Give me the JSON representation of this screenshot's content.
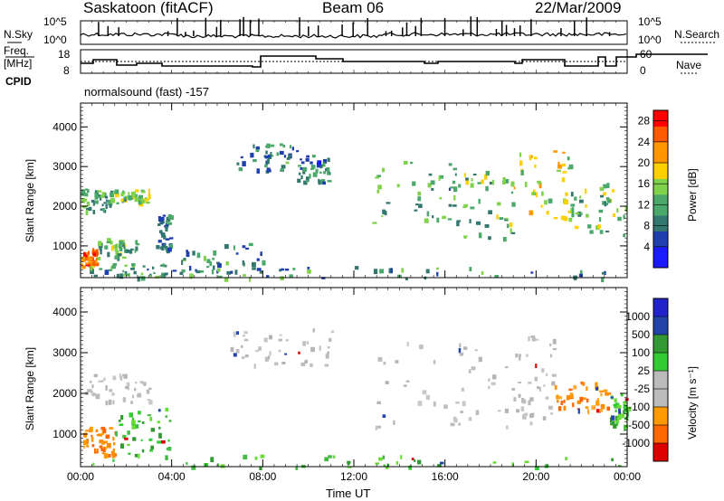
{
  "header": {
    "station": "Saskatoon (fitACF)",
    "beam": "Beam 06",
    "date": "22/Mar/2009"
  },
  "left_labels": {
    "nsky": "N.Sky",
    "freq_line1": "Freq.",
    "freq_line2": "[MHz]",
    "cpid": "CPID"
  },
  "right_labels": {
    "nsearch": "N.Search",
    "nave": "Nave"
  },
  "cpid_value": "normalsound (fast) -157",
  "nsky_ticks": [
    "10^5",
    "10^0"
  ],
  "nsearch_ticks": [
    "10^5",
    "10^0"
  ],
  "freq_ticks": [
    "18",
    "8"
  ],
  "nave_ticks": [
    "60",
    "0"
  ],
  "colors": {
    "velocity_scale": [
      "#dd0000",
      "#ff6600",
      "#ff9900",
      "#bbbbbb",
      "#bbbbbb",
      "#33cc33",
      "#339933",
      "#2244aa",
      "#2222cc"
    ],
    "power_scale": [
      "#1a1aff",
      "#1f3fae",
      "#33776f",
      "#4aa86a",
      "#7fd24a",
      "#ffd000",
      "#ff9500",
      "#ff5a00",
      "#ff0000"
    ]
  },
  "chart_data": [
    {
      "type": "heatmap",
      "name": "power",
      "ylabel": "Slant Range [km]",
      "xlabel": "",
      "x_ticks": [
        "00:00",
        "04:00",
        "08:00",
        "12:00",
        "16:00",
        "20:00",
        "00:00"
      ],
      "y_ticks": [
        1000,
        2000,
        3000,
        4000
      ],
      "ylim": [
        200,
        4600
      ],
      "colorbar_label": "Power [dB]",
      "colorbar_ticks": [
        4,
        8,
        12,
        16,
        20,
        24,
        28
      ],
      "clim": [
        0,
        30
      ],
      "regions": [
        {
          "t0": 0.0,
          "t1": 1.3,
          "r0": 1900,
          "r1": 2450,
          "level": 11
        },
        {
          "t0": 1.3,
          "t1": 3.0,
          "r0": 2100,
          "r1": 2450,
          "level": 14
        },
        {
          "t0": 0.0,
          "t1": 0.7,
          "r0": 500,
          "r1": 1000,
          "level": 26
        },
        {
          "t0": 0.7,
          "t1": 2.5,
          "r0": 700,
          "r1": 1200,
          "level": 12
        },
        {
          "t0": 0.3,
          "t1": 3.8,
          "r0": 230,
          "r1": 600,
          "level": 10
        },
        {
          "t0": 3.3,
          "t1": 3.9,
          "r0": 900,
          "r1": 1800,
          "level": 7
        },
        {
          "t0": 4.4,
          "t1": 8.0,
          "r0": 300,
          "r1": 1100,
          "level": 9
        },
        {
          "t0": 6.8,
          "t1": 9.5,
          "r0": 2900,
          "r1": 3600,
          "level": 8
        },
        {
          "t0": 9.5,
          "t1": 11.0,
          "r0": 2600,
          "r1": 3300,
          "level": 7
        },
        {
          "t0": 12.8,
          "t1": 16.5,
          "r0": 1500,
          "r1": 3200,
          "level": 11
        },
        {
          "t0": 16.5,
          "t1": 19.0,
          "r0": 1100,
          "r1": 2900,
          "level": 12
        },
        {
          "t0": 19.0,
          "t1": 21.5,
          "r0": 1700,
          "r1": 3500,
          "level": 17
        },
        {
          "t0": 21.5,
          "t1": 24.0,
          "r0": 1300,
          "r1": 2600,
          "level": 13
        },
        {
          "t0": 4.0,
          "t1": 24.0,
          "r0": 200,
          "r1": 500,
          "level": 9
        }
      ]
    },
    {
      "type": "heatmap",
      "name": "velocity",
      "ylabel": "Slant Range [km]",
      "xlabel": "Time UT",
      "x_ticks": [
        "00:00",
        "04:00",
        "08:00",
        "12:00",
        "16:00",
        "20:00",
        "00:00"
      ],
      "y_ticks": [
        1000,
        2000,
        3000,
        4000
      ],
      "ylim": [
        200,
        4600
      ],
      "colorbar_label": "Velocity [m s⁻¹]",
      "colorbar_ticks": [
        1000,
        500,
        100,
        25,
        -25,
        -100,
        -500,
        -1000
      ],
      "regions": [
        {
          "t0": 0.0,
          "t1": 3.0,
          "r0": 1800,
          "r1": 2500,
          "class": "grey"
        },
        {
          "t0": 0.0,
          "t1": 1.5,
          "r0": 500,
          "r1": 1200,
          "class": "orange"
        },
        {
          "t0": 1.5,
          "t1": 3.9,
          "r0": 500,
          "r1": 1700,
          "class": "green"
        },
        {
          "t0": 6.5,
          "t1": 11.0,
          "r0": 2700,
          "r1": 3600,
          "class": "grey"
        },
        {
          "t0": 12.8,
          "t1": 19.0,
          "r0": 1200,
          "r1": 3300,
          "class": "grey"
        },
        {
          "t0": 19.0,
          "t1": 20.8,
          "r0": 1300,
          "r1": 3500,
          "class": "grey"
        },
        {
          "t0": 20.8,
          "t1": 23.2,
          "r0": 1600,
          "r1": 2300,
          "class": "orange"
        },
        {
          "t0": 23.2,
          "t1": 24.0,
          "r0": 1200,
          "r1": 2000,
          "class": "green"
        },
        {
          "t0": 0.3,
          "t1": 24.0,
          "r0": 200,
          "r1": 500,
          "class": "green"
        }
      ]
    }
  ]
}
